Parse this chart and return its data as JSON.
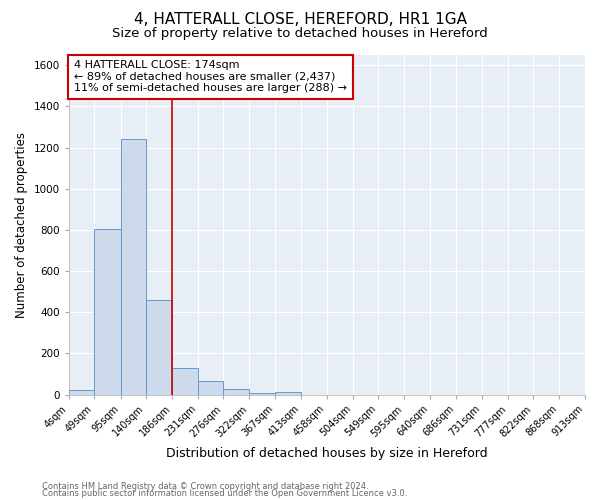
{
  "title": "4, HATTERALL CLOSE, HEREFORD, HR1 1GA",
  "subtitle": "Size of property relative to detached houses in Hereford",
  "xlabel": "Distribution of detached houses by size in Hereford",
  "ylabel": "Number of detached properties",
  "bin_edges": [
    4,
    49,
    95,
    140,
    186,
    231,
    276,
    322,
    367,
    413,
    458,
    504,
    549,
    595,
    640,
    686,
    731,
    777,
    822,
    868,
    913
  ],
  "bar_heights": [
    22,
    805,
    1243,
    458,
    130,
    64,
    25,
    10,
    15,
    0,
    0,
    0,
    0,
    0,
    0,
    0,
    0,
    0,
    0,
    0
  ],
  "bar_color": "#ccdaeb",
  "bar_edge_color": "#6699cc",
  "red_line_x": 186,
  "ylim": [
    0,
    1650
  ],
  "annotation_text": "4 HATTERALL CLOSE: 174sqm\n← 89% of detached houses are smaller (2,437)\n11% of semi-detached houses are larger (288) →",
  "annotation_box_color": "#ffffff",
  "annotation_box_edge_color": "#cc0000",
  "footnote1": "Contains HM Land Registry data © Crown copyright and database right 2024.",
  "footnote2": "Contains public sector information licensed under the Open Government Licence v3.0.",
  "fig_background_color": "#ffffff",
  "plot_background_color": "#e8eef5",
  "title_fontsize": 11,
  "subtitle_fontsize": 9.5,
  "tick_fontsize": 7,
  "ylabel_fontsize": 8.5,
  "xlabel_fontsize": 9,
  "annotation_fontsize": 8,
  "footnote_fontsize": 6
}
